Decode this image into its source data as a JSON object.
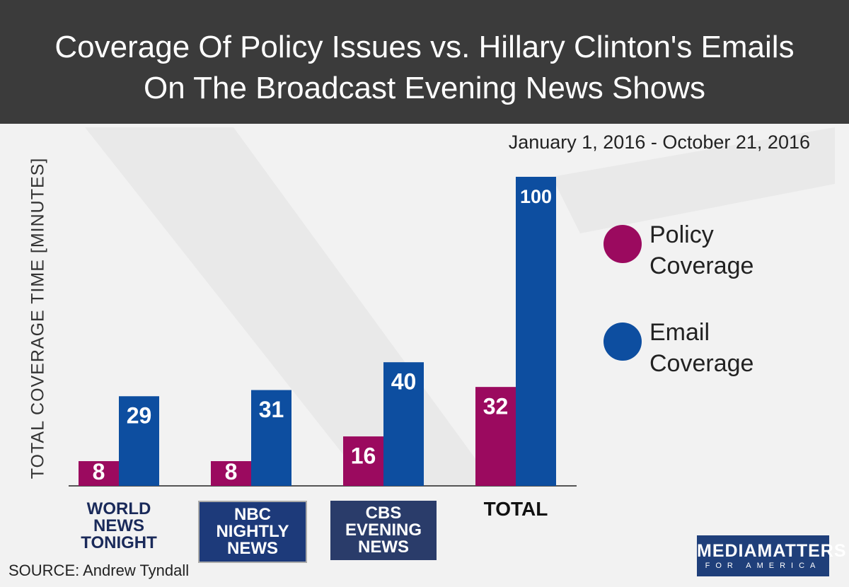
{
  "chart_data": {
    "type": "bar",
    "title": "Coverage Of Policy Issues vs. Hillary Clinton's Emails On The Broadcast Evening News Shows",
    "subtitle": "January 1, 2016 - October 21, 2016",
    "y_label": "TOTAL COVERAGE TIME [MINUTES]",
    "categories": [
      "WORLD NEWS TONIGHT",
      "NBC NIGHTLY NEWS",
      "CBS EVENING NEWS",
      "TOTAL"
    ],
    "series": [
      {
        "name": "Policy Coverage",
        "color": "#9b0a5f",
        "values": [
          8,
          8,
          16,
          32
        ]
      },
      {
        "name": "Email Coverage",
        "color": "#0d4ea0",
        "values": [
          29,
          31,
          40,
          100
        ]
      }
    ],
    "ylim": [
      0,
      100
    ],
    "source": "SOURCE: Andrew Tyndall",
    "logo": [
      "MEDIAMATTERS",
      "FOR AMERICA"
    ]
  }
}
